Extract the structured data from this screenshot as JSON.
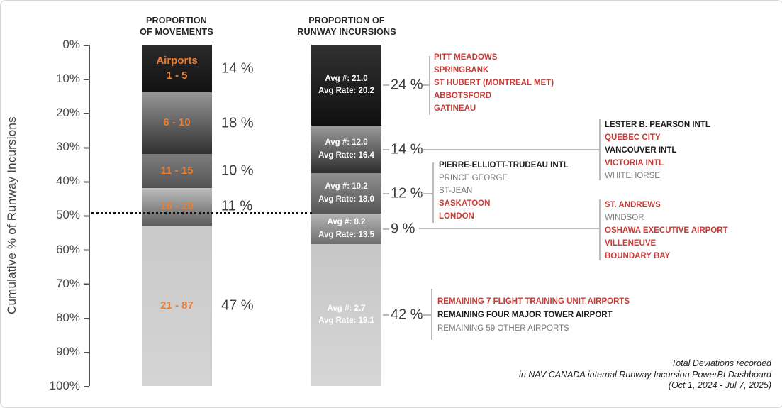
{
  "y_axis": {
    "title": "Cumulative % of Runway Incursions",
    "ticks": [
      "0%",
      "10%",
      "20%",
      "30%",
      "40%",
      "50%",
      "60%",
      "70%",
      "80%",
      "90%",
      "100%"
    ]
  },
  "headers": {
    "movements": [
      "PROPORTION",
      "OF MOVEMENTS"
    ],
    "incursions": [
      "PROPORTION OF",
      "RUNWAY INCURSIONS"
    ]
  },
  "colors": {
    "accent_orange": "#ED7D31",
    "list_red": "#C83C37",
    "list_black": "#1A1A1A",
    "list_gray": "#7A7A7A",
    "connector_gray": "#BCBCBC"
  },
  "chart_data": {
    "type": "bar",
    "variant": "paired cumulative stacked bars (pareto comparison)",
    "ylabel": "Cumulative % of Runway Incursions",
    "ylim": [
      0,
      100
    ],
    "grid": false,
    "reference_line": {
      "at_pct": 50,
      "style": "dotted"
    },
    "movements_bar": {
      "header": "PROPORTION OF MOVEMENTS",
      "segments": [
        {
          "rank": "Airports\n1 - 5",
          "pct": 14,
          "pct_label": "14 %",
          "h": 14,
          "grad": [
            "#2b2b2b",
            "#121212"
          ]
        },
        {
          "rank": "6 - 10",
          "pct": 18,
          "pct_label": "18 %",
          "h": 18,
          "grad": [
            "#969696",
            "#303030"
          ]
        },
        {
          "rank": "11 - 15",
          "pct": 10,
          "pct_label": "10 %",
          "h": 10,
          "grad": [
            "#7d7d7d",
            "#545454"
          ]
        },
        {
          "rank": "16 - 20",
          "pct": 11,
          "pct_label": "11 %",
          "h": 11,
          "grad": [
            "#bdbdbd",
            "#5c5c5c"
          ]
        },
        {
          "rank": "21 - 87",
          "pct": 47,
          "pct_label": "47 %",
          "h": 47,
          "grad": [
            "#c9c9c9",
            "#d4d4d4"
          ]
        }
      ]
    },
    "incursions_bar": {
      "header": "PROPORTION OF RUNWAY INCURSIONS",
      "segments": [
        {
          "avg_count": 21.0,
          "avg_rate": 20.2,
          "label_line1": "Avg #: 21.0",
          "label_line2": "Avg Rate: 20.2",
          "pct": 24,
          "pct_label": "24 %",
          "h": 23.76,
          "grad": [
            "#313131",
            "#101010"
          ]
        },
        {
          "avg_count": 12.0,
          "avg_rate": 16.4,
          "label_line1": "Avg #: 12.0",
          "label_line2": "Avg Rate: 16.4",
          "pct": 14,
          "pct_label": "14 %",
          "h": 13.86,
          "grad": [
            "#9b9b9b",
            "#2d2d2d"
          ]
        },
        {
          "avg_count": 10.2,
          "avg_rate": 18.0,
          "label_line1": "Avg #: 10.2",
          "label_line2": "Avg Rate: 18.0",
          "pct": 12,
          "pct_label": "12 %",
          "h": 11.88,
          "grad": [
            "#8f8f8f",
            "#575757"
          ]
        },
        {
          "avg_count": 8.2,
          "avg_rate": 13.5,
          "label_line1": "Avg #: 8.2",
          "label_line2": "Avg Rate: 13.5",
          "pct": 9,
          "pct_label": "9 %",
          "h": 8.91,
          "grad": [
            "#b5b5b5",
            "#6e6e6e"
          ]
        },
        {
          "avg_count": 2.7,
          "avg_rate": 19.1,
          "label_line1": "Avg #: 2.7",
          "label_line2": "Avg Rate: 19.1",
          "pct": 42,
          "pct_label": "42 %",
          "h": 41.59,
          "grad": [
            "#c6c6c6",
            "#d6d6d6"
          ]
        }
      ]
    },
    "airport_groups": [
      {
        "linked_pct": "24 %",
        "items": [
          {
            "name": "PITT MEADOWS",
            "tone": "red"
          },
          {
            "name": "SPRINGBANK",
            "tone": "red"
          },
          {
            "name": "ST HUBERT (MONTREAL MET)",
            "tone": "red"
          },
          {
            "name": "ABBOTSFORD",
            "tone": "red"
          },
          {
            "name": "GATINEAU",
            "tone": "red"
          }
        ]
      },
      {
        "linked_pct": "14 %",
        "items": [
          {
            "name": "LESTER B. PEARSON INTL",
            "tone": "black"
          },
          {
            "name": "QUEBEC CITY",
            "tone": "red"
          },
          {
            "name": "VANCOUVER INTL",
            "tone": "black"
          },
          {
            "name": "VICTORIA INTL",
            "tone": "red"
          },
          {
            "name": "WHITEHORSE",
            "tone": "gray"
          }
        ]
      },
      {
        "linked_pct": "12 %",
        "items": [
          {
            "name": "PIERRE-ELLIOTT-TRUDEAU INTL",
            "tone": "black"
          },
          {
            "name": "PRINCE GEORGE",
            "tone": "gray"
          },
          {
            "name": "ST-JEAN",
            "tone": "gray"
          },
          {
            "name": "SASKATOON",
            "tone": "red"
          },
          {
            "name": "LONDON",
            "tone": "red"
          }
        ]
      },
      {
        "linked_pct": "9 %",
        "items": [
          {
            "name": "ST. ANDREWS",
            "tone": "red"
          },
          {
            "name": "WINDSOR",
            "tone": "gray"
          },
          {
            "name": "OSHAWA EXECUTIVE AIRPORT",
            "tone": "red"
          },
          {
            "name": "VILLENEUVE",
            "tone": "red"
          },
          {
            "name": "BOUNDARY BAY",
            "tone": "red"
          }
        ]
      },
      {
        "linked_pct": "42 %",
        "items": [
          {
            "name": "REMAINING 7 FLIGHT TRAINING UNIT AIRPORTS",
            "tone": "red"
          },
          {
            "name": "REMAINING FOUR MAJOR TOWER AIRPORT",
            "tone": "black"
          },
          {
            "name": "REMAINING 59 OTHER AIRPORTS",
            "tone": "gray"
          }
        ]
      }
    ]
  },
  "footer": {
    "lines": [
      "Total Deviations recorded",
      "in NAV CANADA internal Runway Incursion PowerBI Dashboard",
      "(Oct 1, 2024 - Jul 7, 2025)"
    ]
  }
}
